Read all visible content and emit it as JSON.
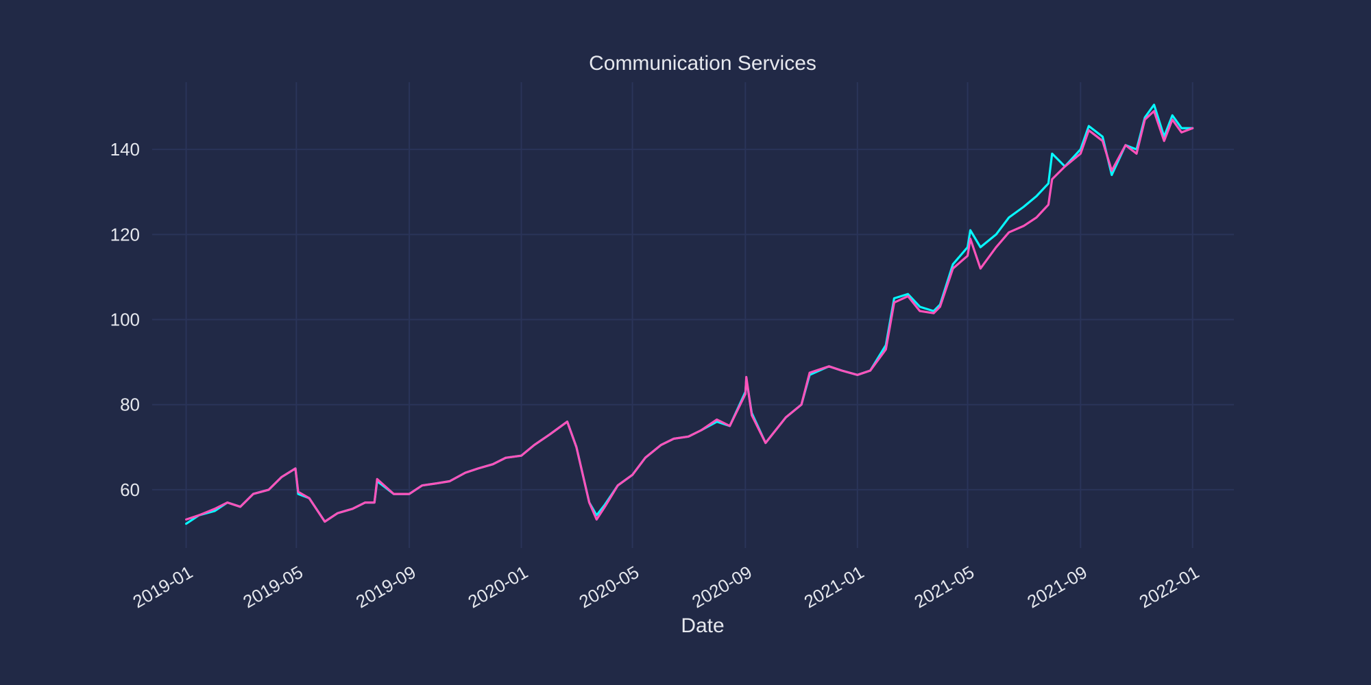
{
  "colors": {
    "background": "#212946",
    "grid": "#2A3459",
    "text": "#E6E8EE",
    "series_a": "#08F7FE",
    "series_b": "#FE53BB"
  },
  "chart_data": {
    "type": "line",
    "title": "Communication Services",
    "xlabel": "Date",
    "ylabel": "",
    "x_range": [
      "2018-11-25",
      "2022-02-15"
    ],
    "ylim": [
      46.3,
      155.8
    ],
    "grid": true,
    "legend": "none",
    "x_ticks": [
      "2019-01",
      "2019-05",
      "2019-09",
      "2020-01",
      "2020-05",
      "2020-09",
      "2021-01",
      "2021-05",
      "2021-09",
      "2022-01"
    ],
    "y_ticks": [
      60,
      80,
      100,
      120,
      140
    ],
    "series": [
      {
        "color": "#08F7FE",
        "points": [
          [
            "2019-01-01",
            52
          ],
          [
            "2019-01-15",
            54
          ],
          [
            "2019-02-01",
            55
          ],
          [
            "2019-02-15",
            57
          ],
          [
            "2019-03-01",
            56
          ],
          [
            "2019-03-15",
            59
          ],
          [
            "2019-04-01",
            60
          ],
          [
            "2019-04-15",
            63
          ],
          [
            "2019-04-30",
            65
          ],
          [
            "2019-05-03",
            59
          ],
          [
            "2019-05-15",
            58
          ],
          [
            "2019-06-01",
            52.5
          ],
          [
            "2019-06-15",
            54.5
          ],
          [
            "2019-07-01",
            55.5
          ],
          [
            "2019-07-15",
            57
          ],
          [
            "2019-07-25",
            57
          ],
          [
            "2019-07-28",
            62
          ],
          [
            "2019-08-15",
            59
          ],
          [
            "2019-09-01",
            59
          ],
          [
            "2019-09-15",
            61
          ],
          [
            "2019-10-01",
            61.5
          ],
          [
            "2019-10-15",
            62
          ],
          [
            "2019-11-01",
            64
          ],
          [
            "2019-11-15",
            65
          ],
          [
            "2019-12-01",
            66
          ],
          [
            "2019-12-15",
            67.5
          ],
          [
            "2020-01-01",
            68
          ],
          [
            "2020-01-15",
            70.5
          ],
          [
            "2020-02-01",
            73
          ],
          [
            "2020-02-20",
            76
          ],
          [
            "2020-03-01",
            70
          ],
          [
            "2020-03-15",
            57
          ],
          [
            "2020-03-23",
            54
          ],
          [
            "2020-04-01",
            56.5
          ],
          [
            "2020-04-15",
            61
          ],
          [
            "2020-05-01",
            63.5
          ],
          [
            "2020-05-15",
            67.5
          ],
          [
            "2020-06-01",
            70.5
          ],
          [
            "2020-06-15",
            72
          ],
          [
            "2020-07-01",
            72.5
          ],
          [
            "2020-07-15",
            74
          ],
          [
            "2020-08-01",
            76
          ],
          [
            "2020-08-15",
            75
          ],
          [
            "2020-09-01",
            83
          ],
          [
            "2020-09-02",
            86
          ],
          [
            "2020-09-08",
            78
          ],
          [
            "2020-09-23",
            71
          ],
          [
            "2020-10-15",
            77
          ],
          [
            "2020-11-01",
            80
          ],
          [
            "2020-11-10",
            87
          ],
          [
            "2020-12-01",
            89
          ],
          [
            "2020-12-15",
            88
          ],
          [
            "2021-01-01",
            87
          ],
          [
            "2021-01-15",
            88
          ],
          [
            "2021-02-01",
            94
          ],
          [
            "2021-02-10",
            105
          ],
          [
            "2021-02-25",
            106
          ],
          [
            "2021-03-10",
            103
          ],
          [
            "2021-03-25",
            102
          ],
          [
            "2021-04-01",
            103.5
          ],
          [
            "2021-04-15",
            113
          ],
          [
            "2021-05-01",
            117
          ],
          [
            "2021-05-04",
            121
          ],
          [
            "2021-05-15",
            117
          ],
          [
            "2021-06-01",
            120
          ],
          [
            "2021-06-15",
            124
          ],
          [
            "2021-07-01",
            126.5
          ],
          [
            "2021-07-15",
            129
          ],
          [
            "2021-07-28",
            132
          ],
          [
            "2021-08-01",
            139
          ],
          [
            "2021-08-15",
            136
          ],
          [
            "2021-09-01",
            140
          ],
          [
            "2021-09-10",
            145.5
          ],
          [
            "2021-09-25",
            143
          ],
          [
            "2021-10-05",
            134
          ],
          [
            "2021-10-20",
            141
          ],
          [
            "2021-11-01",
            140
          ],
          [
            "2021-11-10",
            147.5
          ],
          [
            "2021-11-20",
            150.5
          ],
          [
            "2021-12-01",
            143
          ],
          [
            "2021-12-10",
            148
          ],
          [
            "2021-12-20",
            145
          ],
          [
            "2022-01-01",
            145
          ]
        ]
      },
      {
        "color": "#FE53BB",
        "points": [
          [
            "2019-01-01",
            53
          ],
          [
            "2019-01-15",
            54
          ],
          [
            "2019-02-01",
            55.5
          ],
          [
            "2019-02-15",
            57
          ],
          [
            "2019-03-01",
            56
          ],
          [
            "2019-03-15",
            59
          ],
          [
            "2019-04-01",
            60
          ],
          [
            "2019-04-15",
            63
          ],
          [
            "2019-04-30",
            65
          ],
          [
            "2019-05-03",
            59.5
          ],
          [
            "2019-05-15",
            58
          ],
          [
            "2019-06-01",
            52.5
          ],
          [
            "2019-06-15",
            54.5
          ],
          [
            "2019-07-01",
            55.5
          ],
          [
            "2019-07-15",
            57
          ],
          [
            "2019-07-25",
            57
          ],
          [
            "2019-07-28",
            62.5
          ],
          [
            "2019-08-15",
            59
          ],
          [
            "2019-09-01",
            59
          ],
          [
            "2019-09-15",
            61
          ],
          [
            "2019-10-01",
            61.5
          ],
          [
            "2019-10-15",
            62
          ],
          [
            "2019-11-01",
            64
          ],
          [
            "2019-11-15",
            65
          ],
          [
            "2019-12-01",
            66
          ],
          [
            "2019-12-15",
            67.5
          ],
          [
            "2020-01-01",
            68
          ],
          [
            "2020-01-15",
            70.5
          ],
          [
            "2020-02-01",
            73
          ],
          [
            "2020-02-20",
            76
          ],
          [
            "2020-03-01",
            70
          ],
          [
            "2020-03-15",
            57
          ],
          [
            "2020-03-23",
            53
          ],
          [
            "2020-04-01",
            56
          ],
          [
            "2020-04-15",
            61
          ],
          [
            "2020-05-01",
            63.5
          ],
          [
            "2020-05-15",
            67.5
          ],
          [
            "2020-06-01",
            70.5
          ],
          [
            "2020-06-15",
            72
          ],
          [
            "2020-07-01",
            72.5
          ],
          [
            "2020-07-15",
            74
          ],
          [
            "2020-08-01",
            76.5
          ],
          [
            "2020-08-15",
            75
          ],
          [
            "2020-09-01",
            82.5
          ],
          [
            "2020-09-02",
            86.5
          ],
          [
            "2020-09-08",
            77.5
          ],
          [
            "2020-09-23",
            71
          ],
          [
            "2020-10-15",
            77
          ],
          [
            "2020-11-01",
            80
          ],
          [
            "2020-11-10",
            87.5
          ],
          [
            "2020-12-01",
            89
          ],
          [
            "2020-12-15",
            88
          ],
          [
            "2021-01-01",
            87
          ],
          [
            "2021-01-15",
            88
          ],
          [
            "2021-02-01",
            93
          ],
          [
            "2021-02-10",
            104
          ],
          [
            "2021-02-25",
            105.5
          ],
          [
            "2021-03-10",
            102
          ],
          [
            "2021-03-25",
            101.5
          ],
          [
            "2021-04-01",
            103
          ],
          [
            "2021-04-15",
            112
          ],
          [
            "2021-05-01",
            115
          ],
          [
            "2021-05-04",
            119
          ],
          [
            "2021-05-15",
            112
          ],
          [
            "2021-06-01",
            117
          ],
          [
            "2021-06-15",
            120.5
          ],
          [
            "2021-07-01",
            122
          ],
          [
            "2021-07-15",
            124
          ],
          [
            "2021-07-28",
            127
          ],
          [
            "2021-08-01",
            133
          ],
          [
            "2021-08-15",
            136
          ],
          [
            "2021-09-01",
            139
          ],
          [
            "2021-09-10",
            144.5
          ],
          [
            "2021-09-25",
            142
          ],
          [
            "2021-10-05",
            135
          ],
          [
            "2021-10-20",
            141
          ],
          [
            "2021-11-01",
            139
          ],
          [
            "2021-11-10",
            147
          ],
          [
            "2021-11-20",
            149
          ],
          [
            "2021-12-01",
            142
          ],
          [
            "2021-12-10",
            147
          ],
          [
            "2021-12-20",
            144
          ],
          [
            "2022-01-01",
            145
          ]
        ]
      }
    ]
  }
}
